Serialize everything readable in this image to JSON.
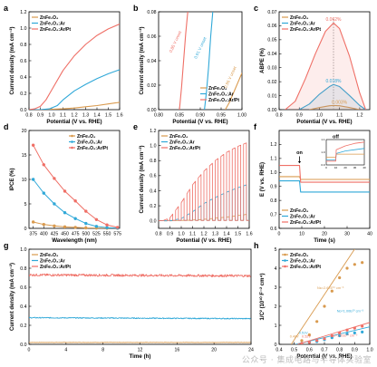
{
  "figure": {
    "watermark": "公众号 · 集成电路与半导体实验室"
  },
  "colors": {
    "ZnFe2O4": "#d99a4e",
    "ZnFe2O4:Ar": "#2fa8d8",
    "ZnFe2O4:Ar/Pt": "#ef6f66",
    "vline": "#777777",
    "axis": "#000000"
  },
  "chart_data": [
    {
      "panel": "a",
      "type": "line",
      "xlabel": "Potential (V vs. RHE)",
      "ylabel": "Current density (mA cm⁻²)",
      "xlim": [
        0.8,
        1.6
      ],
      "ylim": [
        0.0,
        1.2
      ],
      "xticks": [
        "0.8",
        "0.9",
        "1.0",
        "1.1",
        "1.2",
        "1.3",
        "1.4",
        "1.5",
        "1.6"
      ],
      "yticks": [
        "0.0",
        "0.2",
        "0.4",
        "0.6",
        "0.8",
        "1.0",
        "1.2"
      ],
      "legend": "top-left",
      "series": [
        {
          "name": "ZnFe₂O₄",
          "color_key": "ZnFe2O4",
          "x": [
            0.8,
            0.9,
            1.0,
            1.1,
            1.2,
            1.3,
            1.4,
            1.5,
            1.6
          ],
          "y": [
            0.0,
            0.0,
            0.005,
            0.01,
            0.02,
            0.035,
            0.05,
            0.07,
            0.09
          ]
        },
        {
          "name": "ZnFe₂O₄:Ar",
          "color_key": "ZnFe2O4:Ar",
          "x": [
            0.8,
            0.9,
            0.98,
            1.05,
            1.1,
            1.2,
            1.3,
            1.4,
            1.5,
            1.6
          ],
          "y": [
            0.0,
            0.0,
            0.01,
            0.05,
            0.12,
            0.23,
            0.31,
            0.38,
            0.44,
            0.49
          ]
        },
        {
          "name": "ZnFe₂O₄:Ar/Pt",
          "color_key": "ZnFe2O4:Ar/Pt",
          "x": [
            0.8,
            0.85,
            0.9,
            0.95,
            1.0,
            1.1,
            1.2,
            1.3,
            1.4,
            1.5,
            1.6
          ],
          "y": [
            0.0,
            0.01,
            0.04,
            0.12,
            0.24,
            0.48,
            0.66,
            0.8,
            0.91,
            0.99,
            1.05
          ]
        }
      ]
    },
    {
      "panel": "b",
      "type": "line",
      "xlabel": "Potential (V vs. RHE)",
      "ylabel": "Current density (mA cm⁻²)",
      "xlim": [
        0.8,
        1.0
      ],
      "ylim": [
        0.0,
        0.08
      ],
      "xticks": [
        "0.80",
        "0.85",
        "0.90",
        "0.95",
        "1.00"
      ],
      "yticks": [
        "0.00",
        "0.02",
        "0.04",
        "0.06",
        "0.08"
      ],
      "legend": "bottom-right",
      "annotations": [
        "0.96 V",
        "0.91 V",
        "0.85 V"
      ],
      "annotation_suffix": "onset",
      "series": [
        {
          "name": "ZnFe₂O₄",
          "color_key": "ZnFe2O4",
          "x": [
            0.96,
            0.97,
            0.98,
            0.99,
            1.0
          ],
          "y": [
            0.0,
            0.006,
            0.014,
            0.022,
            0.03
          ]
        },
        {
          "name": "ZnFe₂O₄:Ar",
          "color_key": "ZnFe2O4:Ar",
          "x": [
            0.91,
            0.915,
            0.92,
            0.925,
            0.93
          ],
          "y": [
            0.0,
            0.015,
            0.035,
            0.06,
            0.08
          ]
        },
        {
          "name": "ZnFe₂O₄:Ar/Pt",
          "color_key": "ZnFe2O4:Ar/Pt",
          "x": [
            0.85,
            0.855,
            0.86,
            0.865,
            0.87
          ],
          "y": [
            0.0,
            0.018,
            0.04,
            0.062,
            0.08
          ]
        }
      ]
    },
    {
      "panel": "c",
      "type": "line",
      "xlabel": "Potential (V vs. RHE)",
      "ylabel": "ABPE (%)",
      "xlim": [
        0.8,
        1.25
      ],
      "ylim": [
        0.0,
        0.07
      ],
      "xticks": [
        "0.8",
        "0.9",
        "1.0",
        "1.1",
        "1.2"
      ],
      "yticks": [
        "0.00",
        "0.01",
        "0.02",
        "0.03",
        "0.04",
        "0.05",
        "0.06",
        "0.07"
      ],
      "legend": "top-left",
      "peak_potential": 1.07,
      "annotations": [
        "0.062%",
        "0.018%",
        "0.003%"
      ],
      "series": [
        {
          "name": "ZnFe₂O₄",
          "color_key": "ZnFe2O4",
          "x": [
            0.95,
            1.0,
            1.05,
            1.07,
            1.1,
            1.15,
            1.2
          ],
          "y": [
            0.0,
            0.0015,
            0.0028,
            0.003,
            0.0028,
            0.0015,
            0.0
          ]
        },
        {
          "name": "ZnFe₂O₄:Ar",
          "color_key": "ZnFe2O4:Ar",
          "x": [
            0.9,
            0.95,
            1.0,
            1.05,
            1.07,
            1.1,
            1.15,
            1.2,
            1.23
          ],
          "y": [
            0.0,
            0.004,
            0.011,
            0.0165,
            0.018,
            0.0165,
            0.01,
            0.003,
            0.0
          ]
        },
        {
          "name": "ZnFe₂O₄:Ar/Pt",
          "color_key": "ZnFe2O4:Ar/Pt",
          "x": [
            0.83,
            0.88,
            0.93,
            0.98,
            1.03,
            1.07,
            1.1,
            1.15,
            1.2,
            1.23
          ],
          "y": [
            0.0,
            0.006,
            0.022,
            0.04,
            0.056,
            0.062,
            0.058,
            0.038,
            0.012,
            0.0
          ]
        }
      ]
    },
    {
      "panel": "d",
      "type": "line",
      "xlabel": "Wavelength (nm)",
      "ylabel": "IPCE (%)",
      "xlim": [
        365,
        580
      ],
      "ylim": [
        0,
        20
      ],
      "xticks": [
        "375",
        "400",
        "425",
        "450",
        "475",
        "500",
        "525",
        "550",
        "575"
      ],
      "yticks": [
        "0",
        "5",
        "10",
        "15",
        "20"
      ],
      "legend": "top-right",
      "series": [
        {
          "name": "ZnFe₂O₄",
          "color_key": "ZnFe2O4",
          "x": [
            375,
            400,
            425,
            450,
            475,
            500,
            525,
            550,
            575
          ],
          "y": [
            1.3,
            0.8,
            0.5,
            0.3,
            0.2,
            0.1,
            0.05,
            0.03,
            0.02
          ]
        },
        {
          "name": "ZnFe₂O₄:Ar",
          "color_key": "ZnFe2O4:Ar",
          "x": [
            375,
            400,
            425,
            450,
            475,
            500,
            525,
            550,
            575
          ],
          "y": [
            10.0,
            7.2,
            5.0,
            3.2,
            2.0,
            1.0,
            0.4,
            0.15,
            0.05
          ]
        },
        {
          "name": "ZnFe₂O₄:Ar/Pt",
          "color_key": "ZnFe2O4:Ar/Pt",
          "x": [
            375,
            400,
            425,
            450,
            475,
            500,
            525,
            550,
            575
          ],
          "y": [
            17.0,
            13.0,
            10.2,
            7.6,
            5.6,
            3.5,
            1.8,
            0.7,
            0.2
          ]
        }
      ]
    },
    {
      "panel": "e",
      "type": "line",
      "xlabel": "Potential (V vs. RHE)",
      "ylabel": "Current density (mA cm⁻²)",
      "xlim": [
        0.8,
        1.6
      ],
      "ylim": [
        -0.1,
        1.2
      ],
      "xticks": [
        "0.8",
        "0.9",
        "1.0",
        "1.1",
        "1.2",
        "1.3",
        "1.4",
        "1.5",
        "1.6"
      ],
      "yticks": [
        "0.0",
        "0.2",
        "0.4",
        "0.6",
        "0.8",
        "1.0",
        "1.2"
      ],
      "legend": "top-left",
      "light_on_potentials": [
        0.85,
        0.9,
        0.95,
        1.0,
        1.05,
        1.1,
        1.15,
        1.2,
        1.25,
        1.3,
        1.35,
        1.4,
        1.45,
        1.5,
        1.55
      ],
      "series": [
        {
          "name": "ZnFe₂O₄",
          "color_key": "ZnFe2O4",
          "envelope": [
            [
              0.8,
              0
            ],
            [
              0.9,
              0
            ],
            [
              1.0,
              0.005
            ],
            [
              1.1,
              0.01
            ],
            [
              1.2,
              0.02
            ],
            [
              1.3,
              0.035
            ],
            [
              1.4,
              0.05
            ],
            [
              1.5,
              0.07
            ],
            [
              1.6,
              0.09
            ]
          ]
        },
        {
          "name": "ZnFe₂O₄:Ar",
          "color_key": "ZnFe2O4:Ar",
          "envelope": [
            [
              0.8,
              0
            ],
            [
              0.9,
              0
            ],
            [
              1.0,
              0.03
            ],
            [
              1.1,
              0.12
            ],
            [
              1.2,
              0.23
            ],
            [
              1.3,
              0.31
            ],
            [
              1.4,
              0.38
            ],
            [
              1.5,
              0.44
            ],
            [
              1.6,
              0.49
            ]
          ]
        },
        {
          "name": "ZnFe₂O₄:Ar/Pt",
          "color_key": "ZnFe2O4:Ar/Pt",
          "envelope": [
            [
              0.8,
              0
            ],
            [
              0.85,
              0.01
            ],
            [
              0.9,
              0.04
            ],
            [
              1.0,
              0.24
            ],
            [
              1.1,
              0.48
            ],
            [
              1.2,
              0.66
            ],
            [
              1.3,
              0.8
            ],
            [
              1.4,
              0.91
            ],
            [
              1.5,
              0.99
            ],
            [
              1.6,
              1.05
            ]
          ]
        }
      ]
    },
    {
      "panel": "f",
      "type": "line",
      "xlabel": "Time (s)",
      "ylabel": "E (V vs. RHE)",
      "xlim": [
        0,
        40
      ],
      "ylim": [
        0.6,
        1.3
      ],
      "xticks": [
        "0",
        "10",
        "20",
        "30",
        "40"
      ],
      "yticks": [
        "0.6",
        "0.7",
        "0.8",
        "0.9",
        "1.0",
        "1.1",
        "1.2"
      ],
      "legend": "bottom-left",
      "annotations": [
        "on",
        "off"
      ],
      "light_on_time": 9,
      "series": [
        {
          "name": "ZnFe₂O₄",
          "color_key": "ZnFe2O4",
          "x": [
            0,
            9,
            9.5,
            40
          ],
          "y": [
            0.97,
            0.97,
            0.95,
            0.95
          ]
        },
        {
          "name": "ZnFe₂O₄:Ar",
          "color_key": "ZnFe2O4:Ar",
          "x": [
            0,
            9,
            9.5,
            40
          ],
          "y": [
            0.94,
            0.94,
            0.86,
            0.86
          ]
        },
        {
          "name": "ZnFe₂O₄:Ar/Pt",
          "color_key": "ZnFe2O4:Ar/Pt",
          "x": [
            0,
            9,
            9.5,
            40
          ],
          "y": [
            1.05,
            1.05,
            0.93,
            0.93
          ]
        }
      ],
      "inset": {
        "xlim": [
          0,
          40
        ],
        "ylim": [
          0.9,
          1.1
        ],
        "xticks": [
          "0",
          "10",
          "20",
          "30",
          "40"
        ],
        "yticks": [
          "0.9",
          "1.0",
          "1.1"
        ],
        "series": [
          {
            "color_key": "ZnFe2O4",
            "x": [
              0,
              10,
              10.5,
              40
            ],
            "y": [
              0.96,
              0.96,
              0.985,
              0.985
            ]
          },
          {
            "color_key": "ZnFe2O4:Ar",
            "x": [
              0,
              10,
              10.5,
              20,
              30,
              40
            ],
            "y": [
              0.94,
              0.94,
              0.99,
              1.01,
              1.02,
              1.03
            ]
          },
          {
            "color_key": "ZnFe2O4:Ar/Pt",
            "x": [
              0,
              10,
              10.5,
              20,
              30,
              40
            ],
            "y": [
              0.93,
              0.93,
              1.02,
              1.05,
              1.07,
              1.08
            ]
          }
        ]
      }
    },
    {
      "panel": "g",
      "type": "line",
      "xlabel": "Time (h)",
      "ylabel": "Current density (mA cm⁻²)",
      "xlim": [
        0,
        24
      ],
      "ylim": [
        0.0,
        1.0
      ],
      "xticks": [
        "0",
        "4",
        "8",
        "12",
        "16",
        "20",
        "24"
      ],
      "yticks": [
        "0.0",
        "0.2",
        "0.4",
        "0.6",
        "0.8",
        "1.0"
      ],
      "legend": "top-left",
      "series": [
        {
          "name": "ZnFe₂O₄",
          "color_key": "ZnFe2O4",
          "x": [
            0,
            24
          ],
          "y": [
            0.02,
            0.02
          ],
          "noise": 0.002
        },
        {
          "name": "ZnFe₂O₄:Ar",
          "color_key": "ZnFe2O4:Ar",
          "x": [
            0,
            24
          ],
          "y": [
            0.28,
            0.27
          ],
          "noise": 0.005
        },
        {
          "name": "ZnFe₂O₄:Ar/Pt",
          "color_key": "ZnFe2O4:Ar/Pt",
          "x": [
            0,
            24
          ],
          "y": [
            0.73,
            0.72
          ],
          "noise": 0.012
        }
      ]
    },
    {
      "panel": "h",
      "type": "scatter",
      "xlabel": "Potential (V vs. RHE)",
      "ylabel": "1/C² (10¹⁰ F⁻² cm⁴)",
      "xlim": [
        0.4,
        1.0
      ],
      "ylim": [
        0,
        5
      ],
      "xticks": [
        "0.4",
        "0.5",
        "0.6",
        "0.7",
        "0.8",
        "0.9",
        "1.0"
      ],
      "yticks": [
        "0",
        "1",
        "2",
        "3",
        "4",
        "5"
      ],
      "legend": "top-left",
      "annotations": [
        "Nᴅ=2.67E¹⁹ cm⁻³",
        "Nᴅ=1.00E²⁰ cm⁻³",
        "Nᴅ=1.81E²⁰ cm⁻³",
        "0.48V",
        "0.51V",
        "0.52V"
      ],
      "series": [
        {
          "name": "ZnFe₂O₄",
          "color_key": "ZnFe2O4",
          "x": [
            0.55,
            0.6,
            0.65,
            0.7,
            0.75,
            0.8,
            0.85,
            0.9,
            0.95
          ],
          "y": [
            0.2,
            0.5,
            1.2,
            2.0,
            2.8,
            3.5,
            4.0,
            4.2,
            4.3
          ],
          "fit": {
            "x": [
              0.48,
              0.95
            ],
            "y": [
              0,
              5.6
            ]
          }
        },
        {
          "name": "ZnFe₂O₄:Ar",
          "color_key": "ZnFe2O4:Ar",
          "x": [
            0.55,
            0.6,
            0.65,
            0.7,
            0.75,
            0.8,
            0.85,
            0.9,
            0.95
          ],
          "y": [
            0.05,
            0.1,
            0.15,
            0.25,
            0.35,
            0.45,
            0.55,
            0.6,
            0.65
          ],
          "fit": {
            "x": [
              0.51,
              1.0
            ],
            "y": [
              0,
              0.92
            ]
          }
        },
        {
          "name": "ZnFe₂O₄:Ar/Pt",
          "color_key": "ZnFe2O4:Ar/Pt",
          "x": [
            0.55,
            0.6,
            0.65,
            0.7,
            0.75,
            0.8,
            0.85,
            0.9,
            0.95
          ],
          "y": [
            0.05,
            0.1,
            0.2,
            0.3,
            0.45,
            0.6,
            0.75,
            0.85,
            0.95
          ],
          "fit": {
            "x": [
              0.52,
              1.0
            ],
            "y": [
              0,
              1.15
            ]
          }
        }
      ]
    }
  ]
}
